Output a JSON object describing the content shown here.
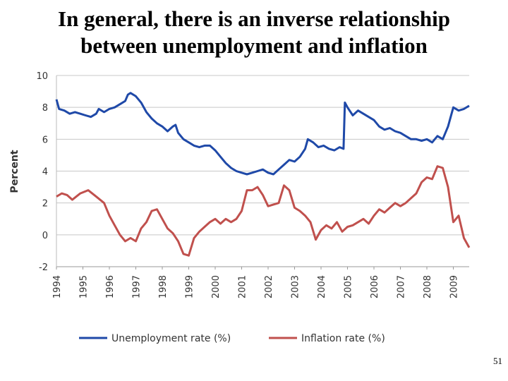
{
  "slide": {
    "title_line1": "In general, there is an inverse relationship",
    "title_line2": "between unemployment and inflation",
    "number": "51"
  },
  "colors": {
    "unemployment": "#1f49a8",
    "inflation": "#c0504d",
    "grid": "#c8c8c8"
  },
  "chart_data": {
    "type": "line",
    "title": "",
    "xlabel": "",
    "ylabel": "Percent",
    "ylim": [
      -2,
      10
    ],
    "yticks": [
      "-2",
      "0",
      "2",
      "4",
      "6",
      "8",
      "10"
    ],
    "ytick_values": [
      -2,
      0,
      2,
      4,
      6,
      8,
      10
    ],
    "categories": [
      "1994",
      "1995",
      "1996",
      "1997",
      "1998",
      "1999",
      "2000",
      "2001",
      "2002",
      "2003",
      "2004",
      "2005",
      "2006",
      "2007",
      "2008",
      "2009"
    ],
    "xlim": [
      1994,
      2009.6
    ],
    "grid": true,
    "legend_position": "bottom",
    "series": [
      {
        "name": "Unemployment rate (%)",
        "x": [
          1994,
          1994.1,
          1994.3,
          1994.5,
          1994.7,
          1994.9,
          1995.1,
          1995.3,
          1995.5,
          1995.6,
          1995.8,
          1996,
          1996.2,
          1996.4,
          1996.6,
          1996.7,
          1996.8,
          1997,
          1997.2,
          1997.4,
          1997.6,
          1997.8,
          1998,
          1998.2,
          1998.4,
          1998.5,
          1998.6,
          1998.8,
          1999,
          1999.2,
          1999.4,
          1999.6,
          1999.8,
          2000,
          2000.2,
          2000.4,
          2000.6,
          2000.8,
          2001,
          2001.2,
          2001.4,
          2001.6,
          2001.8,
          2002,
          2002.2,
          2002.4,
          2002.6,
          2002.8,
          2003,
          2003.2,
          2003.4,
          2003.5,
          2003.7,
          2003.9,
          2004.1,
          2004.3,
          2004.5,
          2004.7,
          2004.85,
          2004.9,
          2005,
          2005.2,
          2005.4,
          2005.6,
          2005.8,
          2006,
          2006.2,
          2006.4,
          2006.6,
          2006.8,
          2007,
          2007.2,
          2007.4,
          2007.6,
          2007.8,
          2008,
          2008.2,
          2008.4,
          2008.6,
          2008.8,
          2009,
          2009.2,
          2009.4,
          2009.6
        ],
        "values": [
          8.5,
          7.9,
          7.8,
          7.6,
          7.7,
          7.6,
          7.5,
          7.4,
          7.6,
          7.9,
          7.7,
          7.9,
          8.0,
          8.2,
          8.4,
          8.8,
          8.9,
          8.7,
          8.3,
          7.7,
          7.3,
          7.0,
          6.8,
          6.5,
          6.8,
          6.9,
          6.4,
          6.0,
          5.8,
          5.6,
          5.5,
          5.6,
          5.6,
          5.3,
          4.9,
          4.5,
          4.2,
          4.0,
          3.9,
          3.8,
          3.9,
          4.0,
          4.1,
          3.9,
          3.8,
          4.1,
          4.4,
          4.7,
          4.6,
          4.9,
          5.4,
          6.0,
          5.8,
          5.5,
          5.6,
          5.4,
          5.3,
          5.5,
          5.4,
          8.3,
          8.0,
          7.5,
          7.8,
          7.6,
          7.4,
          7.2,
          6.8,
          6.6,
          6.7,
          6.5,
          6.4,
          6.2,
          6.0,
          6.0,
          5.9,
          6.0,
          5.8,
          6.2,
          6.0,
          6.8,
          8.0,
          7.8,
          7.9,
          8.1
        ]
      },
      {
        "name": "Inflation rate (%)",
        "x": [
          1994,
          1994.2,
          1994.4,
          1994.6,
          1994.9,
          1995.2,
          1995.5,
          1995.8,
          1996,
          1996.2,
          1996.4,
          1996.6,
          1996.8,
          1997,
          1997.2,
          1997.4,
          1997.6,
          1997.8,
          1998,
          1998.2,
          1998.4,
          1998.6,
          1998.8,
          1999,
          1999.2,
          1999.4,
          1999.6,
          1999.8,
          2000,
          2000.2,
          2000.4,
          2000.6,
          2000.8,
          2001,
          2001.2,
          2001.4,
          2001.6,
          2001.8,
          2002,
          2002.2,
          2002.4,
          2002.6,
          2002.8,
          2003,
          2003.2,
          2003.4,
          2003.6,
          2003.8,
          2004,
          2004.2,
          2004.4,
          2004.6,
          2004.8,
          2005,
          2005.2,
          2005.4,
          2005.6,
          2005.8,
          2006,
          2006.2,
          2006.4,
          2006.6,
          2006.8,
          2007,
          2007.2,
          2007.4,
          2007.6,
          2007.8,
          2008,
          2008.2,
          2008.4,
          2008.6,
          2008.8,
          2009,
          2009.2,
          2009.4,
          2009.6
        ],
        "values": [
          2.4,
          2.6,
          2.5,
          2.2,
          2.6,
          2.8,
          2.4,
          2.0,
          1.2,
          0.6,
          0.0,
          -0.4,
          -0.2,
          -0.4,
          0.4,
          0.8,
          1.5,
          1.6,
          1.0,
          0.4,
          0.1,
          -0.4,
          -1.2,
          -1.3,
          -0.2,
          0.2,
          0.5,
          0.8,
          1.0,
          0.7,
          1.0,
          0.8,
          1.0,
          1.5,
          2.8,
          2.8,
          3.0,
          2.5,
          1.8,
          1.9,
          2.0,
          3.1,
          2.8,
          1.7,
          1.5,
          1.2,
          0.8,
          -0.3,
          0.3,
          0.6,
          0.4,
          0.8,
          0.2,
          0.5,
          0.6,
          0.8,
          1.0,
          0.7,
          1.2,
          1.6,
          1.4,
          1.7,
          2.0,
          1.8,
          2.0,
          2.3,
          2.6,
          3.3,
          3.6,
          3.5,
          4.3,
          4.2,
          3.0,
          0.8,
          1.2,
          -0.2,
          -0.8
        ]
      }
    ]
  }
}
